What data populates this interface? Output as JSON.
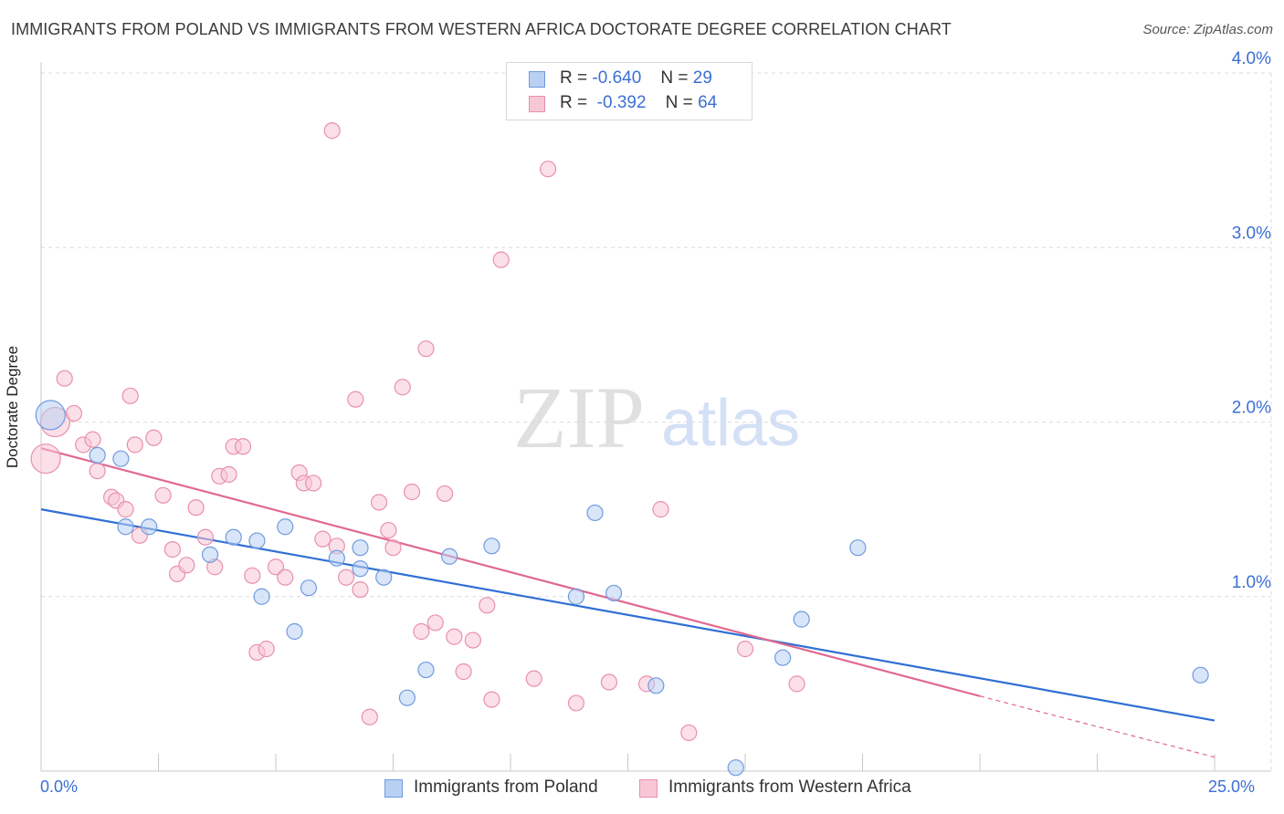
{
  "title": "IMMIGRANTS FROM POLAND VS IMMIGRANTS FROM WESTERN AFRICA DOCTORATE DEGREE CORRELATION CHART",
  "source": "Source: ZipAtlas.com",
  "watermark": {
    "zip": "ZIP",
    "atlas": "atlas"
  },
  "legend": {
    "rows": [
      {
        "r_label": "R =",
        "r_value": "-0.640",
        "n_label": "N =",
        "n_value": "29"
      },
      {
        "r_label": "R =",
        "r_value": "-0.392",
        "n_label": "N =",
        "n_value": "64"
      }
    ]
  },
  "colors": {
    "poland_fill": "#b9d0f3",
    "poland_stroke": "#6f9be0",
    "poland_line": "#2f6fd4",
    "wafrica_fill": "#f7c7d6",
    "wafrica_stroke": "#e98fae",
    "wafrica_line": "#e06990",
    "grid": "#dcdcdc",
    "tick_text": "#3b6fd4"
  },
  "chart_data": {
    "type": "scatter",
    "title": "IMMIGRANTS FROM POLAND VS IMMIGRANTS FROM WESTERN AFRICA DOCTORATE DEGREE CORRELATION CHART",
    "xlabel": "",
    "ylabel": "Doctorate Degree",
    "xlim": [
      0,
      25
    ],
    "ylim": [
      0,
      4.2
    ],
    "x_tick_labels": [
      "0.0%",
      "25.0%"
    ],
    "y_ticks": [
      1.0,
      2.0,
      3.0,
      4.0
    ],
    "y_tick_labels": [
      "1.0%",
      "2.0%",
      "3.0%",
      "4.0%"
    ],
    "grid": true,
    "legend_position": "top-center",
    "series": [
      {
        "name": "Immigrants from Poland",
        "r": -0.64,
        "n": 29,
        "trend": {
          "x": [
            0,
            25
          ],
          "y": [
            1.5,
            0.29
          ]
        },
        "points": [
          [
            0.2,
            2.04,
            "large"
          ],
          [
            1.2,
            1.81
          ],
          [
            1.7,
            1.79
          ],
          [
            1.8,
            1.4
          ],
          [
            2.3,
            1.4
          ],
          [
            3.6,
            1.24
          ],
          [
            4.1,
            1.34
          ],
          [
            4.6,
            1.32
          ],
          [
            4.7,
            1.0
          ],
          [
            5.2,
            1.4
          ],
          [
            5.4,
            0.8
          ],
          [
            5.7,
            1.05
          ],
          [
            6.3,
            1.22
          ],
          [
            6.8,
            1.28
          ],
          [
            6.8,
            1.16
          ],
          [
            7.3,
            1.11
          ],
          [
            7.8,
            0.42
          ],
          [
            8.2,
            0.58
          ],
          [
            8.7,
            1.23
          ],
          [
            9.6,
            1.29
          ],
          [
            11.4,
            1.0
          ],
          [
            11.8,
            1.48
          ],
          [
            12.2,
            1.02
          ],
          [
            13.1,
            0.49
          ],
          [
            16.2,
            0.87
          ],
          [
            15.8,
            0.65
          ],
          [
            17.4,
            1.28
          ],
          [
            14.8,
            0.02
          ],
          [
            24.7,
            0.55
          ]
        ]
      },
      {
        "name": "Immigrants from Western Africa",
        "r": -0.392,
        "n": 64,
        "trend": {
          "x": [
            0,
            20
          ],
          "y": [
            1.85,
            0.43
          ]
        },
        "trend_dashed": {
          "x": [
            20,
            25
          ],
          "y": [
            0.43,
            0.08
          ]
        },
        "points": [
          [
            0.1,
            1.79,
            "large"
          ],
          [
            0.3,
            2.0,
            "large"
          ],
          [
            0.5,
            2.25
          ],
          [
            0.7,
            2.05
          ],
          [
            0.9,
            1.87
          ],
          [
            1.1,
            1.9
          ],
          [
            1.2,
            1.72
          ],
          [
            1.5,
            1.57
          ],
          [
            1.6,
            1.55
          ],
          [
            1.8,
            1.5
          ],
          [
            1.9,
            2.15
          ],
          [
            2.0,
            1.87
          ],
          [
            2.1,
            1.35
          ],
          [
            2.4,
            1.91
          ],
          [
            2.6,
            1.58
          ],
          [
            2.8,
            1.27
          ],
          [
            2.9,
            1.13
          ],
          [
            3.1,
            1.18
          ],
          [
            3.3,
            1.51
          ],
          [
            3.5,
            1.34
          ],
          [
            3.7,
            1.17
          ],
          [
            3.8,
            1.69
          ],
          [
            4.0,
            1.7
          ],
          [
            4.1,
            1.86
          ],
          [
            4.3,
            1.86
          ],
          [
            4.5,
            1.12
          ],
          [
            4.6,
            0.68
          ],
          [
            4.8,
            0.7
          ],
          [
            5.0,
            1.17
          ],
          [
            5.2,
            1.11
          ],
          [
            5.5,
            1.71
          ],
          [
            5.6,
            1.65
          ],
          [
            5.8,
            1.65
          ],
          [
            6.0,
            1.33
          ],
          [
            6.2,
            3.67
          ],
          [
            6.3,
            1.29
          ],
          [
            6.5,
            1.11
          ],
          [
            6.7,
            2.13
          ],
          [
            6.8,
            1.04
          ],
          [
            7.0,
            0.31
          ],
          [
            7.2,
            1.54
          ],
          [
            7.4,
            1.38
          ],
          [
            7.5,
            1.28
          ],
          [
            7.7,
            2.2
          ],
          [
            7.9,
            1.6
          ],
          [
            8.1,
            0.8
          ],
          [
            8.2,
            2.42
          ],
          [
            8.4,
            0.85
          ],
          [
            8.6,
            1.59
          ],
          [
            8.8,
            0.77
          ],
          [
            9.0,
            0.57
          ],
          [
            9.2,
            0.75
          ],
          [
            9.5,
            0.95
          ],
          [
            9.6,
            0.41
          ],
          [
            9.8,
            2.93
          ],
          [
            10.5,
            0.53
          ],
          [
            10.8,
            3.45
          ],
          [
            11.4,
            0.39
          ],
          [
            12.1,
            0.51
          ],
          [
            12.9,
            0.5
          ],
          [
            13.2,
            1.5
          ],
          [
            13.8,
            0.22
          ],
          [
            15.0,
            0.7
          ],
          [
            16.1,
            0.5
          ]
        ]
      }
    ]
  },
  "bottom_legend": [
    {
      "label": "Immigrants from Poland"
    },
    {
      "label": "Immigrants from Western Africa"
    }
  ]
}
